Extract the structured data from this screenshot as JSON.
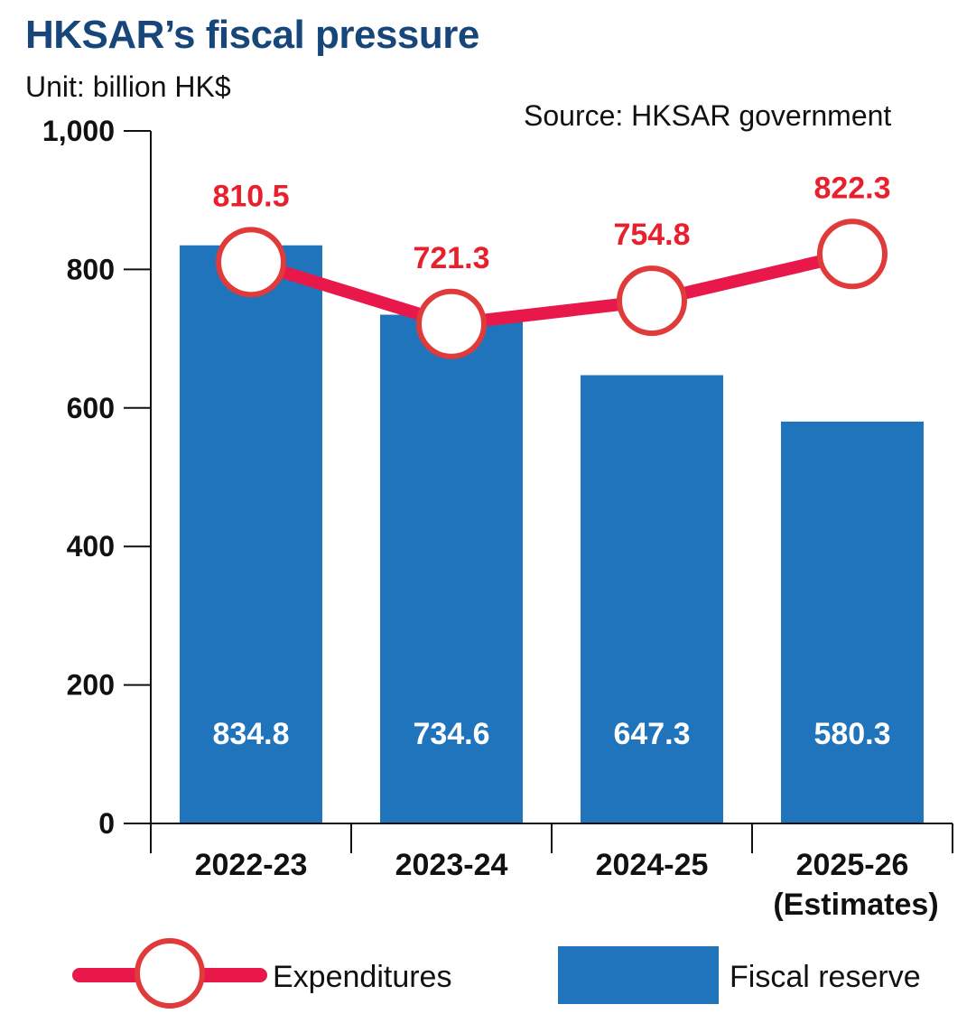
{
  "chart_data": {
    "type": "bar",
    "title": "HKSAR’s fiscal pressure",
    "unit_label": "Unit: billion HK$",
    "source": "Source: HKSAR government",
    "categories": [
      "2022-23",
      "2023-24",
      "2024-25",
      "2025-26"
    ],
    "category_sublabels": [
      "",
      "",
      "",
      "(Estimates)"
    ],
    "ylim": [
      0,
      1000
    ],
    "yticks": [
      0,
      200,
      400,
      600,
      800,
      1000
    ],
    "ytick_labels": [
      "0",
      "200",
      "400",
      "600",
      "800",
      "1,000"
    ],
    "series": [
      {
        "name": "Fiscal reserve",
        "type": "bar",
        "values": [
          834.8,
          734.6,
          647.3,
          580.3
        ],
        "labels": [
          "834.8",
          "734.6",
          "647.3",
          "580.3"
        ],
        "color": "#1f74bb"
      },
      {
        "name": "Expenditures",
        "type": "line",
        "values": [
          810.5,
          721.3,
          754.8,
          822.3
        ],
        "labels": [
          "810.5",
          "721.3",
          "754.8",
          "822.3"
        ],
        "color": "#e8194a"
      }
    ],
    "legend": [
      "Expenditures",
      "Fiscal reserve"
    ],
    "legend_position": "bottom",
    "grid": false
  }
}
